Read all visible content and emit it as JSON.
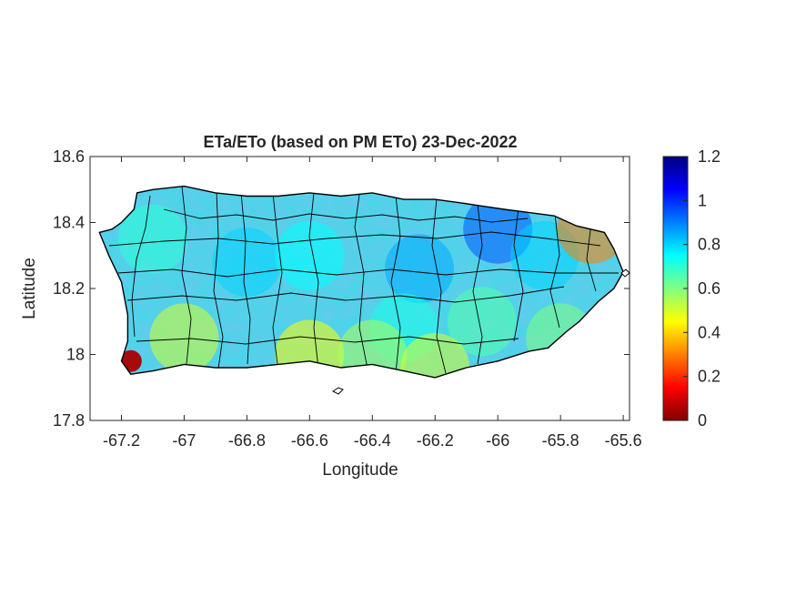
{
  "figure": {
    "title": "ETa/ETo (based on PM ETo) 23-Dec-2022",
    "xlabel": "Longitude",
    "ylabel": "Latitude"
  },
  "chart_data": {
    "type": "heatmap",
    "title": "ETa/ETo (based on PM ETo) 23-Dec-2022",
    "xlabel": "Longitude",
    "ylabel": "Latitude",
    "xlim": [
      -67.3,
      -65.58
    ],
    "ylim": [
      17.8,
      18.6
    ],
    "xticks": [
      -67.2,
      -67,
      -66.8,
      -66.6,
      -66.4,
      -66.2,
      -66,
      -65.8,
      -65.6
    ],
    "xtick_labels": [
      "-67.2",
      "-67",
      "-66.8",
      "-66.6",
      "-66.4",
      "-66.2",
      "-66",
      "-65.8",
      "-65.6"
    ],
    "yticks": [
      17.8,
      18,
      18.2,
      18.4,
      18.6
    ],
    "ytick_labels": [
      "17.8",
      "18",
      "18.2",
      "18.4",
      "18.6"
    ],
    "colorbar": {
      "colormap": "jet",
      "range": [
        0,
        1.2
      ],
      "ticks": [
        0,
        0.2,
        0.4,
        0.6,
        0.8,
        1,
        1.2
      ],
      "tick_labels": [
        "0",
        "0.2",
        "0.4",
        "0.6",
        "0.8",
        "1",
        "1.2"
      ]
    },
    "grid": false,
    "outline_lonlat": [
      [
        -67.27,
        18.37
      ],
      [
        -67.23,
        18.38
      ],
      [
        -67.2,
        18.4
      ],
      [
        -67.16,
        18.44
      ],
      [
        -67.15,
        18.49
      ],
      [
        -67.1,
        18.5
      ],
      [
        -67.0,
        18.51
      ],
      [
        -66.9,
        18.49
      ],
      [
        -66.8,
        18.48
      ],
      [
        -66.7,
        18.48
      ],
      [
        -66.6,
        18.49
      ],
      [
        -66.5,
        18.48
      ],
      [
        -66.4,
        18.49
      ],
      [
        -66.3,
        18.47
      ],
      [
        -66.2,
        18.47
      ],
      [
        -66.12,
        18.46
      ],
      [
        -66.05,
        18.45
      ],
      [
        -65.98,
        18.44
      ],
      [
        -65.9,
        18.43
      ],
      [
        -65.82,
        18.42
      ],
      [
        -65.75,
        18.39
      ],
      [
        -65.66,
        18.37
      ],
      [
        -65.63,
        18.32
      ],
      [
        -65.6,
        18.25
      ],
      [
        -65.63,
        18.2
      ],
      [
        -65.68,
        18.16
      ],
      [
        -65.74,
        18.1
      ],
      [
        -65.78,
        18.07
      ],
      [
        -65.84,
        18.02
      ],
      [
        -65.9,
        18.01
      ],
      [
        -66.0,
        17.98
      ],
      [
        -66.1,
        17.96
      ],
      [
        -66.2,
        17.93
      ],
      [
        -66.3,
        17.95
      ],
      [
        -66.4,
        17.97
      ],
      [
        -66.5,
        17.96
      ],
      [
        -66.6,
        17.98
      ],
      [
        -66.7,
        17.97
      ],
      [
        -66.8,
        17.96
      ],
      [
        -66.9,
        17.96
      ],
      [
        -67.0,
        17.97
      ],
      [
        -67.1,
        17.95
      ],
      [
        -67.17,
        17.94
      ],
      [
        -67.2,
        17.98
      ],
      [
        -67.18,
        18.04
      ],
      [
        -67.18,
        18.12
      ],
      [
        -67.2,
        18.22
      ],
      [
        -67.24,
        18.3
      ],
      [
        -67.27,
        18.37
      ]
    ],
    "field_samples": [
      {
        "lon": -66.8,
        "lat": 18.28,
        "value": 0.8
      },
      {
        "lon": -66.6,
        "lat": 18.3,
        "value": 0.75
      },
      {
        "lon": -66.25,
        "lat": 18.26,
        "value": 0.85
      },
      {
        "lon": -66.0,
        "lat": 18.38,
        "value": 0.95
      },
      {
        "lon": -65.85,
        "lat": 18.3,
        "value": 0.8
      },
      {
        "lon": -66.05,
        "lat": 18.1,
        "value": 0.65
      },
      {
        "lon": -66.3,
        "lat": 18.08,
        "value": 0.72
      },
      {
        "lon": -67.0,
        "lat": 18.05,
        "value": 0.5
      },
      {
        "lon": -66.6,
        "lat": 18.0,
        "value": 0.45
      },
      {
        "lon": -66.4,
        "lat": 18.0,
        "value": 0.55
      },
      {
        "lon": -67.17,
        "lat": 17.98,
        "value": 0.05
      },
      {
        "lon": -67.1,
        "lat": 18.35,
        "value": 0.7
      },
      {
        "lon": -66.2,
        "lat": 17.96,
        "value": 0.5
      },
      {
        "lon": -65.8,
        "lat": 18.05,
        "value": 0.6
      },
      {
        "lon": -65.7,
        "lat": 18.38,
        "value": 0.3
      }
    ]
  }
}
